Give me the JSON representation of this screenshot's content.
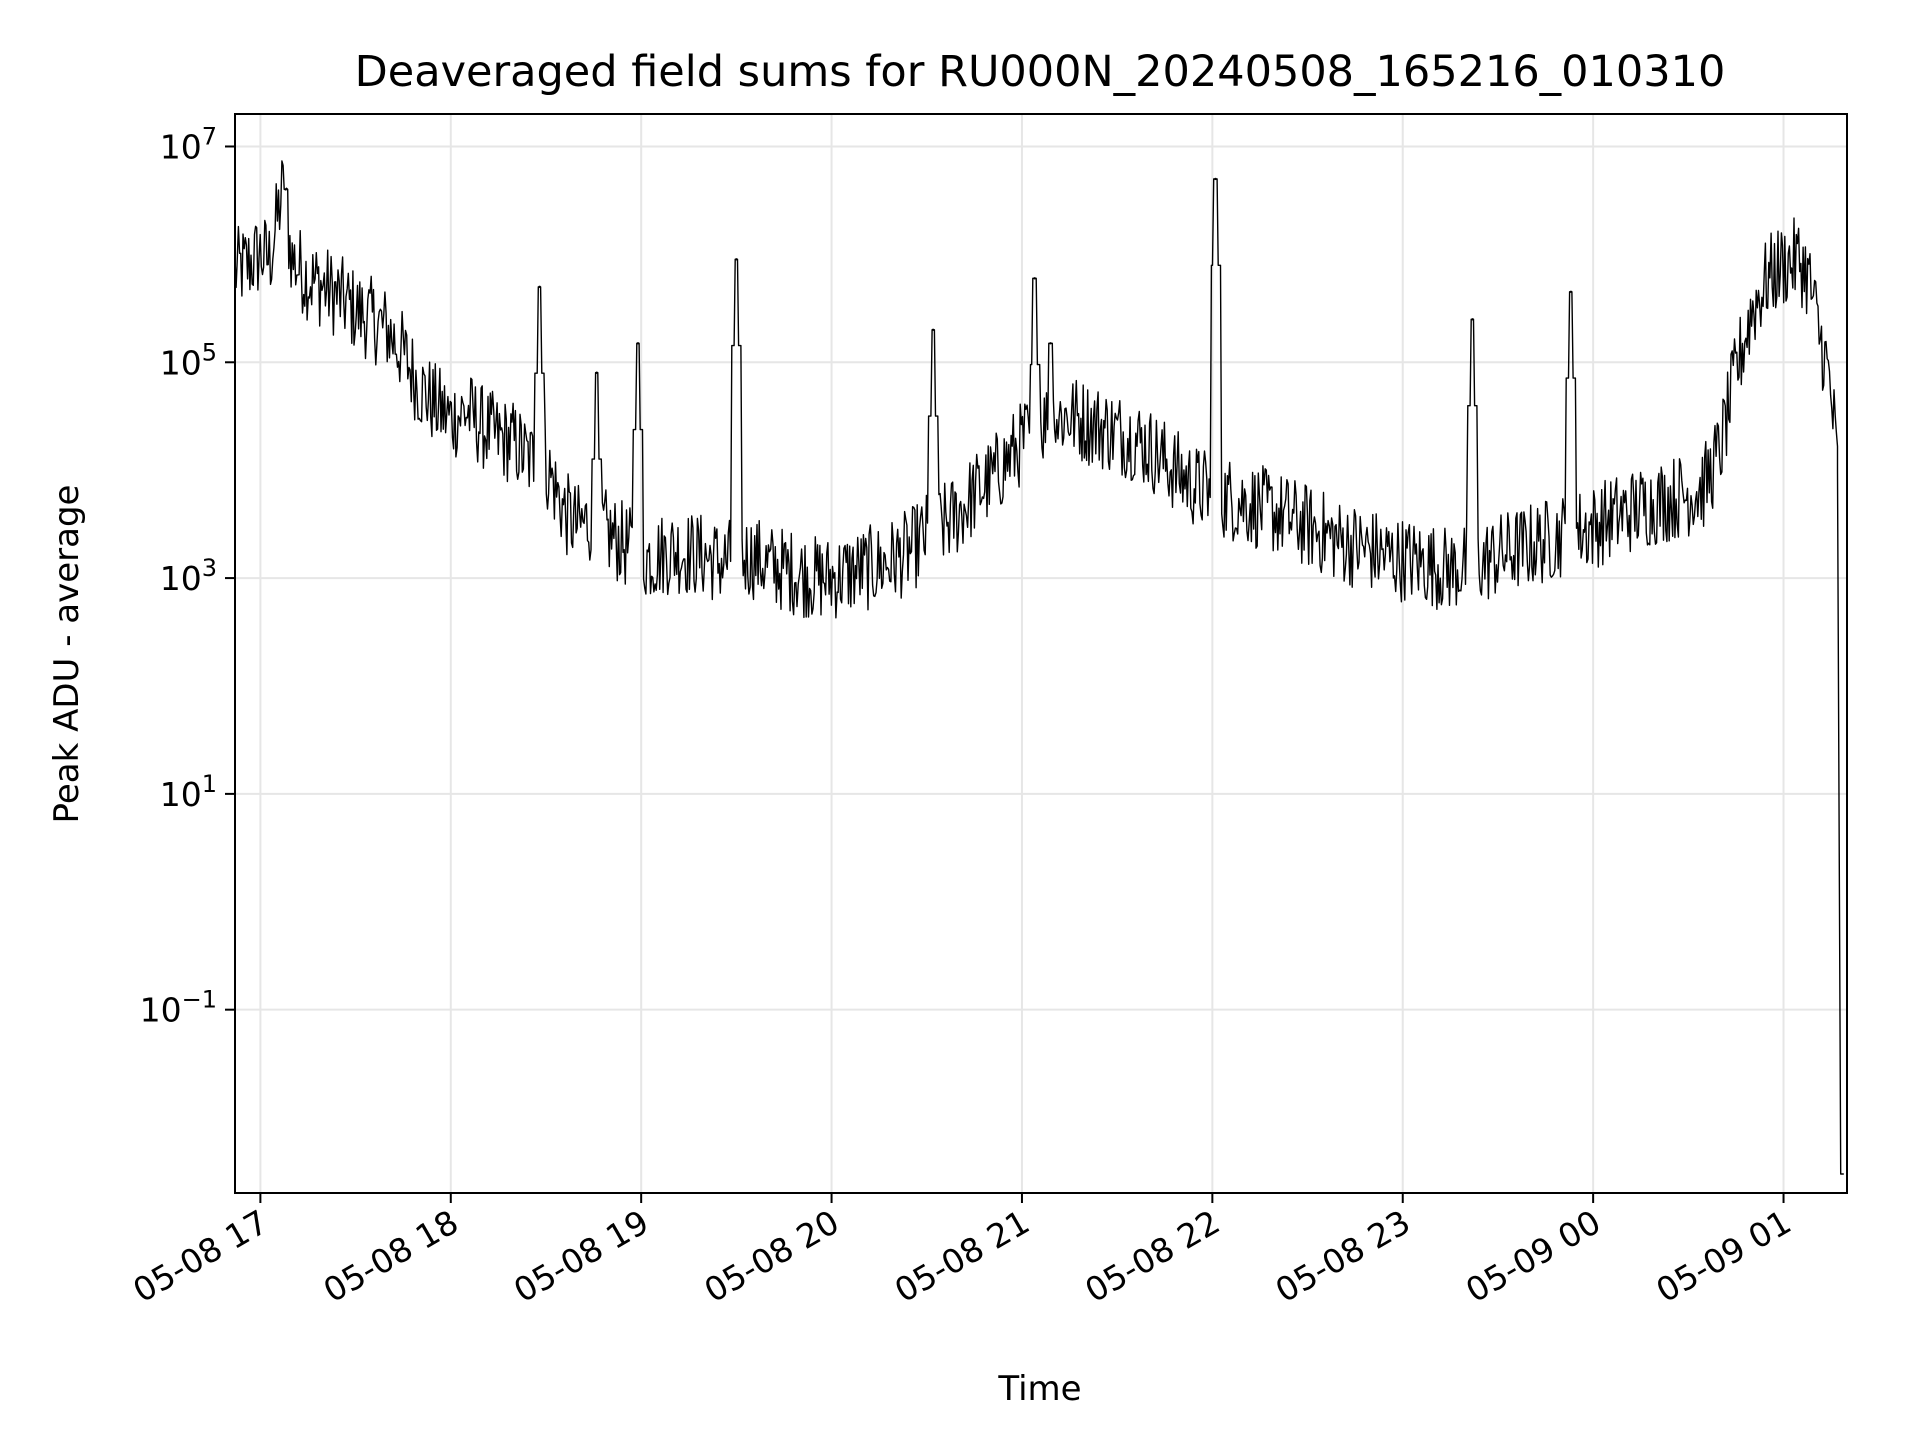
{
  "chart_data": {
    "type": "line",
    "title": "Deaveraged field sums for RU000N_20240508_165216_010310",
    "xlabel": "Time",
    "ylabel": "Peak ADU - average",
    "yscale": "log",
    "ylim": [
      0.002,
      20000000
    ],
    "xlim": [
      "2024-05-08 16:52",
      "2024-05-09 01:20"
    ],
    "grid": true,
    "line_color": "#000000",
    "x_ticks": [
      {
        "t": "2024-05-08 17:00",
        "label": "05-08 17"
      },
      {
        "t": "2024-05-08 18:00",
        "label": "05-08 18"
      },
      {
        "t": "2024-05-08 19:00",
        "label": "05-08 19"
      },
      {
        "t": "2024-05-08 20:00",
        "label": "05-08 20"
      },
      {
        "t": "2024-05-08 21:00",
        "label": "05-08 21"
      },
      {
        "t": "2024-05-08 22:00",
        "label": "05-08 22"
      },
      {
        "t": "2024-05-08 23:00",
        "label": "05-08 23"
      },
      {
        "t": "2024-05-09 00:00",
        "label": "05-09 00"
      },
      {
        "t": "2024-05-09 01:00",
        "label": "05-09 01"
      }
    ],
    "y_ticks": [
      {
        "value": 10000000,
        "base": "10",
        "exp": "7"
      },
      {
        "value": 100000,
        "base": "10",
        "exp": "5"
      },
      {
        "value": 1000,
        "base": "10",
        "exp": "3"
      },
      {
        "value": 10,
        "base": "10",
        "exp": "1"
      },
      {
        "value": 0.1,
        "base": "10",
        "exp": "−1"
      }
    ],
    "series": [
      {
        "x": [
          "2024-05-08 16:52",
          "2024-05-08 16:56",
          "2024-05-08 17:00",
          "2024-05-08 17:03",
          "2024-05-08 17:07",
          "2024-05-08 17:10",
          "2024-05-08 17:15",
          "2024-05-08 17:20",
          "2024-05-08 17:25",
          "2024-05-08 17:30",
          "2024-05-08 17:35",
          "2024-05-08 17:40",
          "2024-05-08 17:45",
          "2024-05-08 17:50",
          "2024-05-08 17:55",
          "2024-05-08 18:00",
          "2024-05-08 18:05",
          "2024-05-08 18:10",
          "2024-05-08 18:15",
          "2024-05-08 18:20",
          "2024-05-08 18:25",
          "2024-05-08 18:28",
          "2024-05-08 18:32",
          "2024-05-08 18:36",
          "2024-05-08 18:40",
          "2024-05-08 18:45",
          "2024-05-08 18:50",
          "2024-05-08 18:55",
          "2024-05-08 19:00",
          "2024-05-08 19:05",
          "2024-05-08 19:10",
          "2024-05-08 19:15",
          "2024-05-08 19:20",
          "2024-05-08 19:25",
          "2024-05-08 19:30",
          "2024-05-08 19:35",
          "2024-05-08 19:40",
          "2024-05-08 19:45",
          "2024-05-08 19:50",
          "2024-05-08 19:55",
          "2024-05-08 20:00",
          "2024-05-08 20:05",
          "2024-05-08 20:10",
          "2024-05-08 20:15",
          "2024-05-08 20:20",
          "2024-05-08 20:25",
          "2024-05-08 20:30",
          "2024-05-08 20:35",
          "2024-05-08 20:40",
          "2024-05-08 20:45",
          "2024-05-08 20:50",
          "2024-05-08 20:55",
          "2024-05-08 21:00",
          "2024-05-08 21:05",
          "2024-05-08 21:10",
          "2024-05-08 21:15",
          "2024-05-08 21:20",
          "2024-05-08 21:25",
          "2024-05-08 21:30",
          "2024-05-08 21:35",
          "2024-05-08 21:40",
          "2024-05-08 21:45",
          "2024-05-08 21:50",
          "2024-05-08 21:55",
          "2024-05-08 22:00",
          "2024-05-08 22:05",
          "2024-05-08 22:10",
          "2024-05-08 22:15",
          "2024-05-08 22:20",
          "2024-05-08 22:25",
          "2024-05-08 22:30",
          "2024-05-08 22:35",
          "2024-05-08 22:40",
          "2024-05-08 22:45",
          "2024-05-08 22:50",
          "2024-05-08 22:55",
          "2024-05-08 23:00",
          "2024-05-08 23:05",
          "2024-05-08 23:10",
          "2024-05-08 23:15",
          "2024-05-08 23:20",
          "2024-05-08 23:25",
          "2024-05-08 23:30",
          "2024-05-08 23:35",
          "2024-05-08 23:40",
          "2024-05-08 23:45",
          "2024-05-08 23:50",
          "2024-05-08 23:55",
          "2024-05-09 00:00",
          "2024-05-09 00:05",
          "2024-05-09 00:10",
          "2024-05-09 00:15",
          "2024-05-09 00:20",
          "2024-05-09 00:25",
          "2024-05-09 00:30",
          "2024-05-09 00:35",
          "2024-05-09 00:40",
          "2024-05-09 00:45",
          "2024-05-09 00:50",
          "2024-05-09 00:55",
          "2024-05-09 01:00",
          "2024-05-09 01:05",
          "2024-05-09 01:08",
          "2024-05-09 01:11",
          "2024-05-09 01:14",
          "2024-05-09 01:16",
          "2024-05-09 01:17",
          "2024-05-09 01:18",
          "2024-05-09 01:19"
        ],
        "y": [
          700000,
          800000,
          1000000,
          900000,
          4000000,
          900000,
          600000,
          500000,
          400000,
          300000,
          250000,
          200000,
          120000,
          60000,
          40000,
          30000,
          35000,
          25000,
          20000,
          18000,
          12000,
          15000,
          8000,
          4000,
          3000,
          3500,
          2500,
          2000,
          1500,
          1600,
          1800,
          1700,
          1600,
          1400,
          1500,
          1600,
          1300,
          1200,
          1100,
          1000,
          1000,
          1100,
          1200,
          1300,
          1500,
          1800,
          2500,
          3000,
          4000,
          6000,
          8000,
          12000,
          18000,
          25000,
          30000,
          32000,
          28000,
          25000,
          22000,
          20000,
          16000,
          12000,
          9000,
          7000,
          6000,
          5500,
          5000,
          4500,
          4000,
          3500,
          3000,
          2600,
          2200,
          2000,
          1800,
          1600,
          1500,
          1400,
          1300,
          1200,
          1300,
          1400,
          1600,
          1800,
          2000,
          2200,
          2500,
          2700,
          3000,
          3500,
          4000,
          4500,
          5000,
          5500,
          6000,
          7000,
          15000,
          80000,
          300000,
          600000,
          800000,
          900000,
          600000,
          200000,
          80000,
          25000,
          10000,
          0.003,
          0.003
        ]
      }
    ],
    "spikes": [
      {
        "t": "2024-05-08 17:08",
        "value": 4000000
      },
      {
        "t": "2024-05-08 18:28",
        "value": 500000
      },
      {
        "t": "2024-05-08 18:46",
        "value": 80000
      },
      {
        "t": "2024-05-08 18:59",
        "value": 150000
      },
      {
        "t": "2024-05-08 19:30",
        "value": 900000
      },
      {
        "t": "2024-05-08 20:32",
        "value": 200000
      },
      {
        "t": "2024-05-08 21:04",
        "value": 600000
      },
      {
        "t": "2024-05-08 21:09",
        "value": 150000
      },
      {
        "t": "2024-05-08 22:01",
        "value": 5000000
      },
      {
        "t": "2024-05-08 23:22",
        "value": 250000
      },
      {
        "t": "2024-05-08 23:53",
        "value": 450000
      }
    ]
  }
}
